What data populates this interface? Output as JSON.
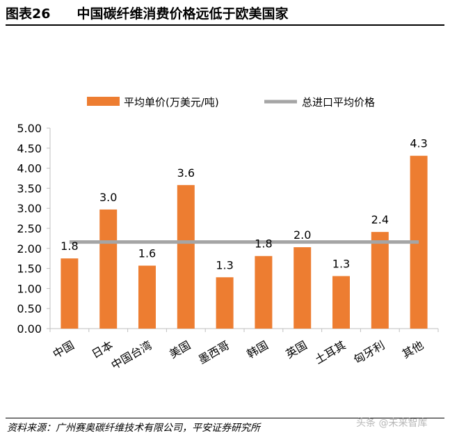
{
  "figure": {
    "number": "图表26",
    "title": "中国碳纤维消费价格远低于欧美国家"
  },
  "source": "资料来源：广州赛奥碳纤维技术有限公司，平安证券研究所",
  "watermark": "头条 @未来智库",
  "chart_data": {
    "type": "bar",
    "categories": [
      "中国",
      "日本",
      "中国台湾",
      "美国",
      "墨西哥",
      "韩国",
      "英国",
      "土耳其",
      "匈牙利",
      "其他"
    ],
    "series": [
      {
        "name": "平均单价(万美元/吨)",
        "type": "bar",
        "color": "#ED7D31",
        "values": [
          1.75,
          2.97,
          1.57,
          3.58,
          1.28,
          1.81,
          2.03,
          1.31,
          2.41,
          4.31
        ],
        "data_labels": [
          "1.8",
          "3.0",
          "1.6",
          "3.6",
          "1.3",
          "1.8",
          "2.0",
          "1.3",
          "2.4",
          "4.3"
        ]
      },
      {
        "name": "总进口平均价格",
        "type": "line",
        "color": "#A5A5A5",
        "value": 2.16
      }
    ],
    "ylim": [
      0,
      5
    ],
    "yticks": [
      "0.00",
      "0.50",
      "1.00",
      "1.50",
      "2.00",
      "2.50",
      "3.00",
      "3.50",
      "4.00",
      "4.50",
      "5.00"
    ],
    "xlabel": "",
    "ylabel": "",
    "legend_position": "top",
    "grid": false
  }
}
